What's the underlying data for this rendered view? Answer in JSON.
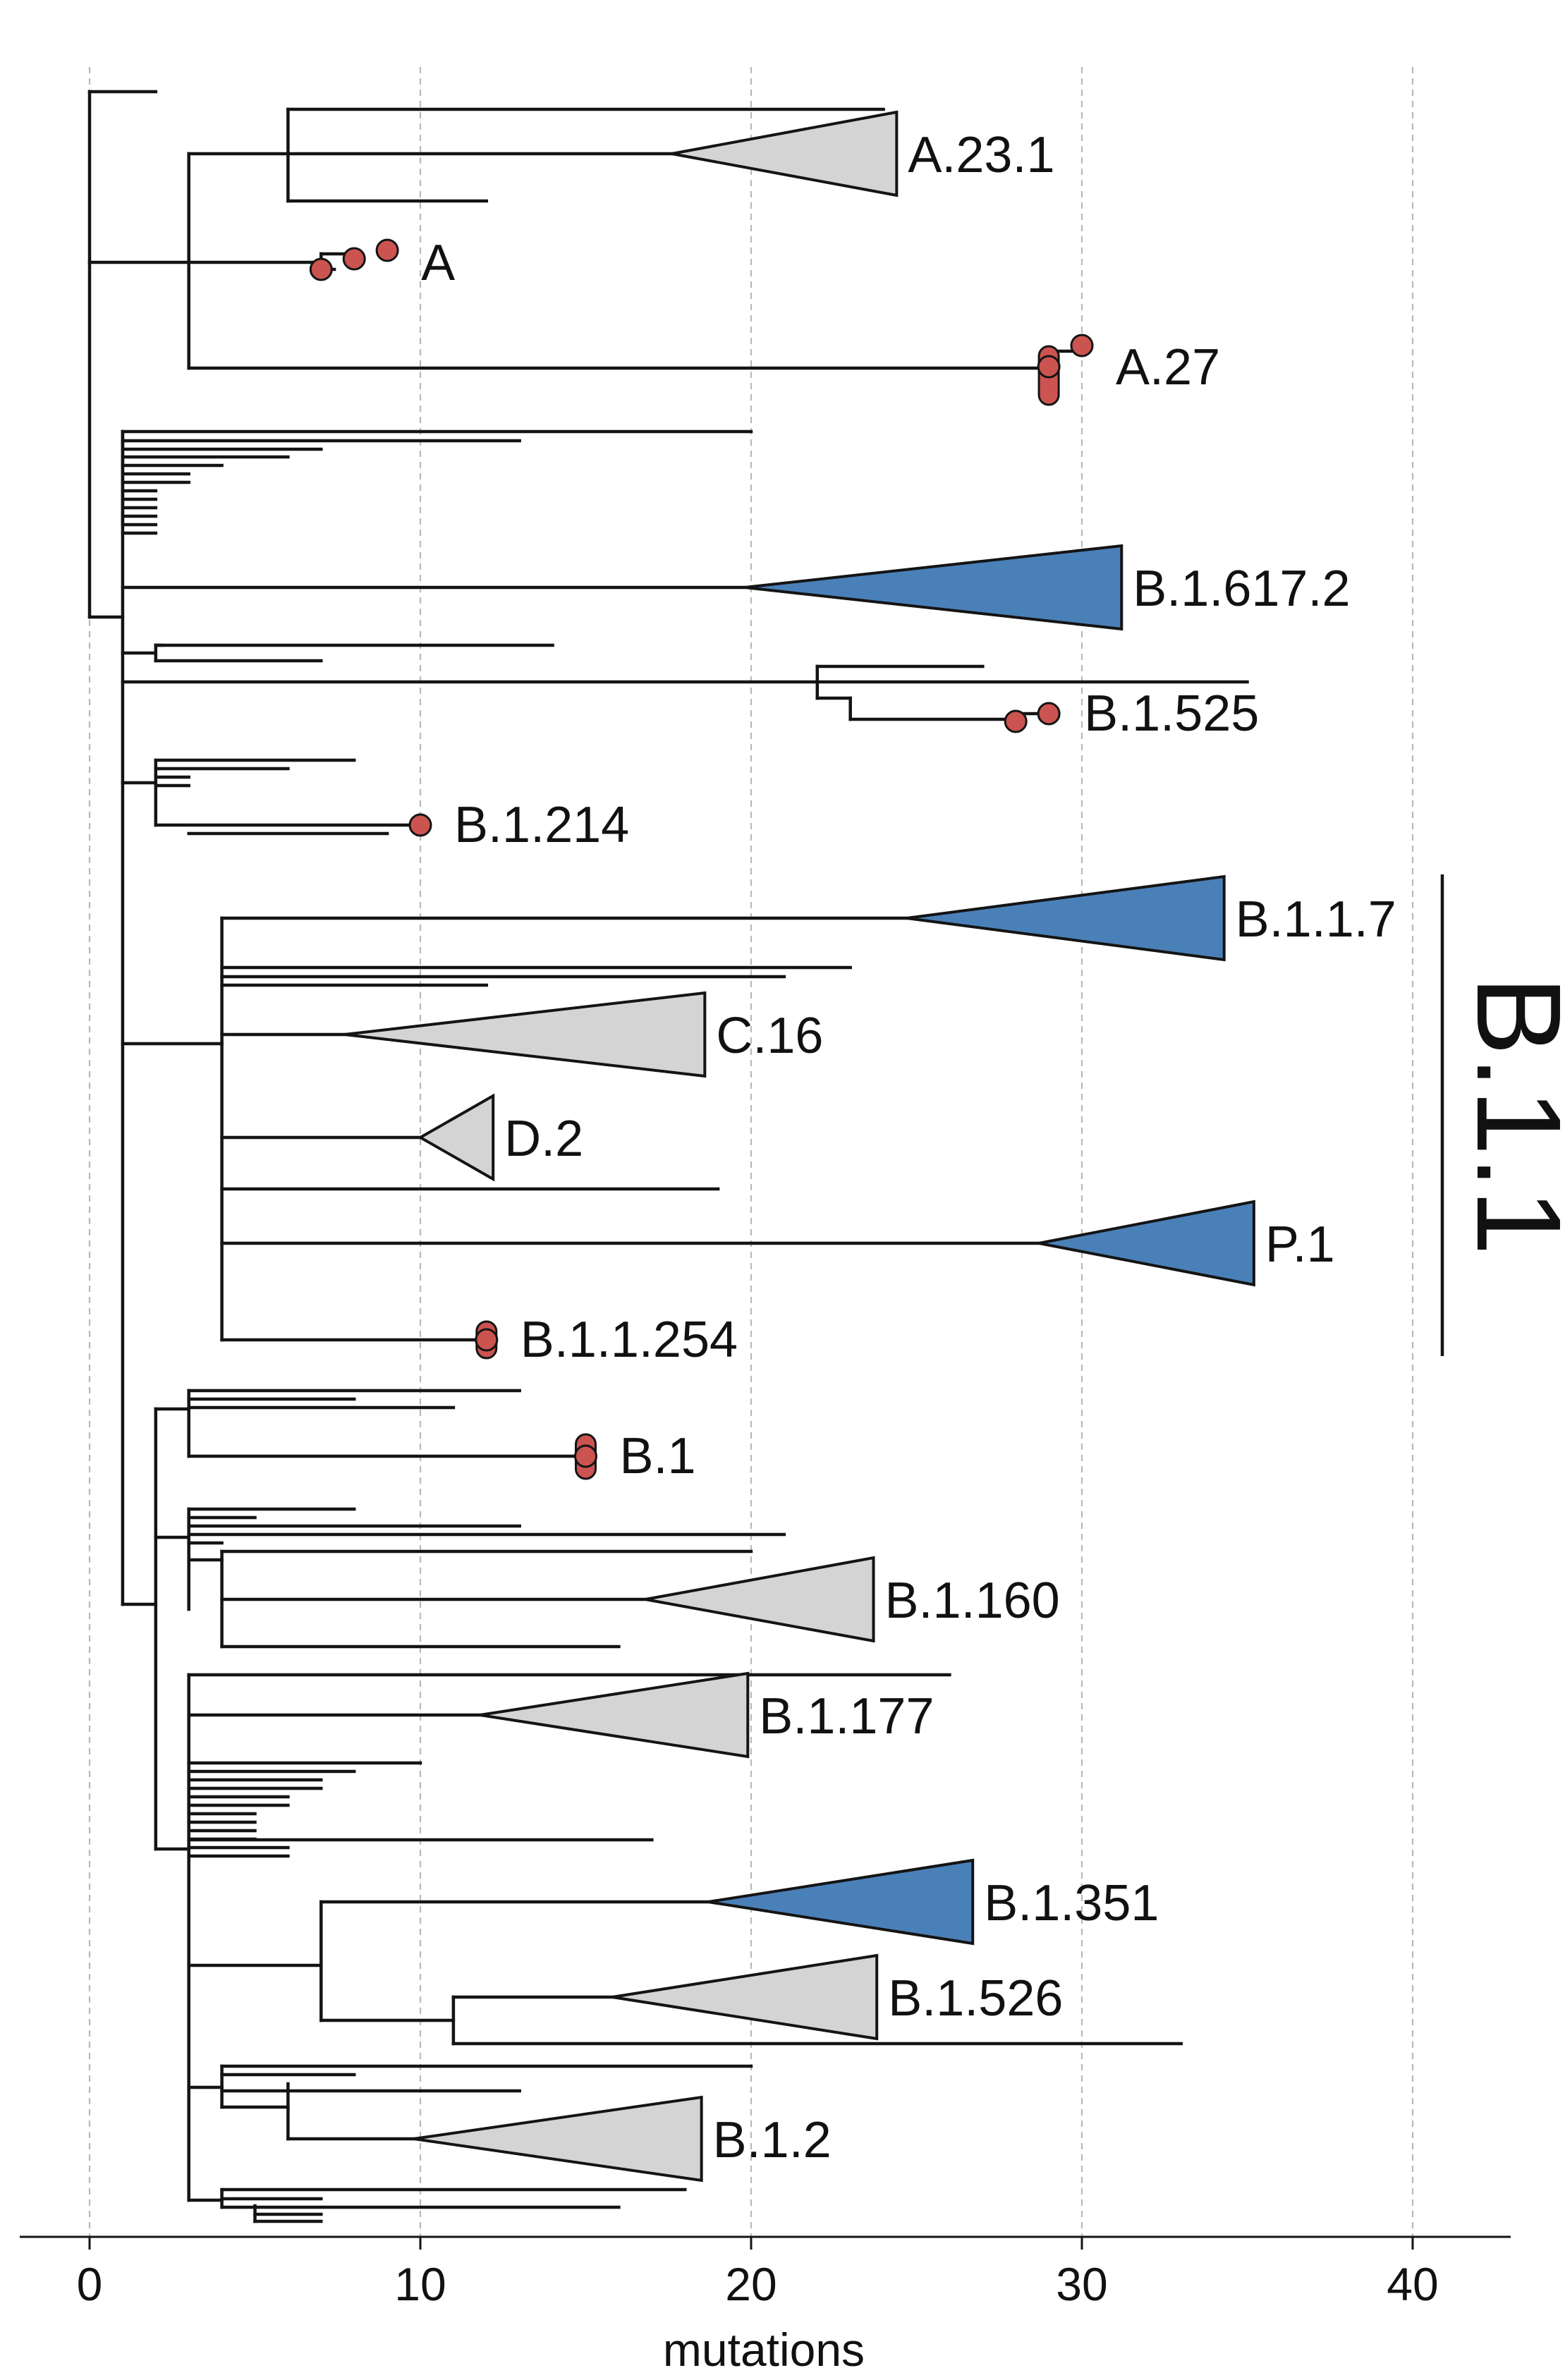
{
  "chart_data": {
    "type": "phylogenetic-tree",
    "xlabel": "mutations",
    "x_ticks": [
      0,
      10,
      20,
      30,
      40
    ],
    "xlim": [
      -2,
      43
    ],
    "colors": {
      "highlight": "#4a80b8",
      "other": "#d4d4d4",
      "sample_point": "#cc5450",
      "branch": "#141414"
    },
    "collapsed_clades": [
      {
        "name": "A.23.1",
        "start": 17.6,
        "end": 24.4,
        "color": "grey"
      },
      {
        "name": "B.1.617.2",
        "start": 19.8,
        "end": 31.2,
        "color": "blue"
      },
      {
        "name": "B.1.1.7",
        "start": 24.7,
        "end": 34.3,
        "color": "blue"
      },
      {
        "name": "C.16",
        "start": 7.7,
        "end": 18.6,
        "color": "grey"
      },
      {
        "name": "D.2",
        "start": 10.0,
        "end": 12.2,
        "color": "grey"
      },
      {
        "name": "P.1",
        "start": 28.7,
        "end": 35.2,
        "color": "blue"
      },
      {
        "name": "B.1.160",
        "start": 16.8,
        "end": 23.7,
        "color": "grey"
      },
      {
        "name": "B.1.177",
        "start": 11.8,
        "end": 19.9,
        "color": "grey"
      },
      {
        "name": "B.1.351",
        "start": 18.7,
        "end": 26.7,
        "color": "blue"
      },
      {
        "name": "B.1.526",
        "start": 15.8,
        "end": 23.8,
        "color": "grey"
      },
      {
        "name": "B.1.2",
        "start": 9.8,
        "end": 18.5,
        "color": "grey"
      }
    ],
    "sample_groups": [
      {
        "name": "A",
        "mutations": [
          7,
          8,
          9
        ]
      },
      {
        "name": "A.27",
        "mutations": [
          29,
          30
        ]
      },
      {
        "name": "B.1.525",
        "mutations": [
          28,
          29
        ]
      },
      {
        "name": "B.1.214",
        "mutations": [
          10
        ]
      },
      {
        "name": "B.1.1.254",
        "mutations": [
          12
        ]
      },
      {
        "name": "B.1",
        "mutations": [
          15
        ]
      }
    ],
    "bracket": {
      "label": "B.1.1",
      "spans": [
        "B.1.1.7",
        "B.1.1.254"
      ]
    }
  }
}
